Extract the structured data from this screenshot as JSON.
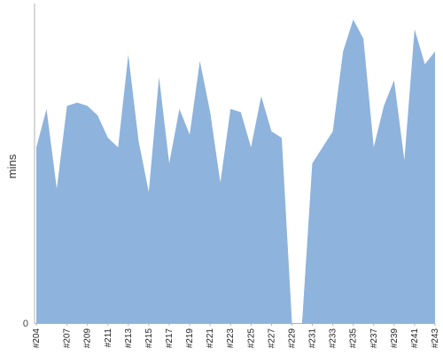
{
  "chart_data": {
    "type": "area",
    "ylabel": "mins",
    "xlabel": "",
    "title": "",
    "ylim": [
      0,
      100
    ],
    "grid": false,
    "ytick_labels": [
      "0"
    ],
    "x_tick_labels": [
      "#204",
      "#207",
      "#209",
      "#211",
      "#213",
      "#215",
      "#217",
      "#219",
      "#221",
      "#223",
      "#225",
      "#227",
      "#229",
      "#231",
      "#233",
      "#235",
      "#237",
      "#239",
      "#241",
      "#243"
    ],
    "x": [
      "#204",
      "#205",
      "#206",
      "#207",
      "#208",
      "#209",
      "#210",
      "#211",
      "#212",
      "#213",
      "#214",
      "#215",
      "#216",
      "#217",
      "#218",
      "#219",
      "#220",
      "#221",
      "#222",
      "#223",
      "#224",
      "#225",
      "#226",
      "#227",
      "#228",
      "#229",
      "#230",
      "#231",
      "#232",
      "#233",
      "#234",
      "#235",
      "#236",
      "#237",
      "#238",
      "#239",
      "#240",
      "#241",
      "#242",
      "#243"
    ],
    "series": [
      {
        "values": [
          55,
          67,
          42,
          68,
          69,
          68,
          65,
          58,
          55,
          84,
          57,
          41,
          77,
          50,
          67,
          59,
          82,
          66,
          44,
          67,
          66,
          55,
          71,
          60,
          58,
          0,
          0,
          50,
          55,
          60,
          85,
          95,
          89,
          55,
          68,
          76,
          51,
          92,
          81,
          85
        ]
      }
    ],
    "failed_band_indices": [
      25,
      26
    ],
    "colors": {
      "area": "#8eb3dc",
      "failed": "#c0c0c0",
      "axis": "#b0b0b0"
    }
  }
}
